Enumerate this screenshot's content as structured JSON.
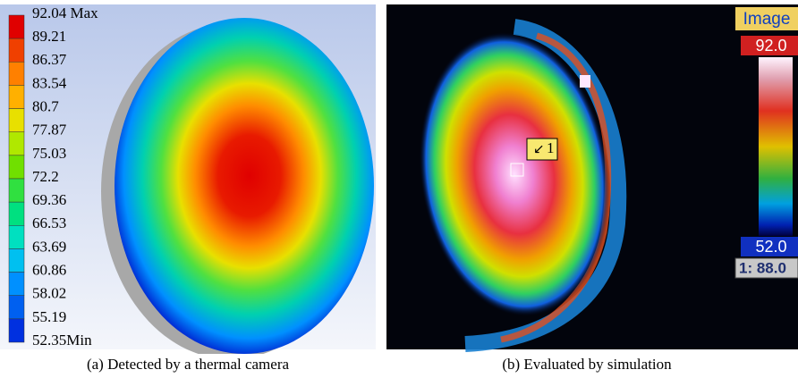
{
  "panel_a": {
    "legend": [
      "92.04 Max",
      "89.21",
      "86.37",
      "83.54",
      "80.7",
      "77.87",
      "75.03",
      "72.2",
      "69.36",
      "66.53",
      "63.69",
      "60.86",
      "58.02",
      "55.19",
      "52.35Min"
    ],
    "caption": "(a) Detected by a thermal camera"
  },
  "panel_b": {
    "mode": "Image",
    "max_label": "92.0",
    "min_label": "52.0",
    "spot_readout": "1: 88.0",
    "spot_marker": "1",
    "caption": "(b) Evaluated by simulation"
  }
}
